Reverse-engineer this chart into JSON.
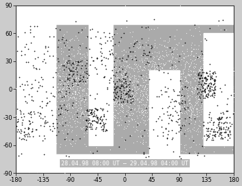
{
  "xlim": [
    -180,
    180
  ],
  "ylim": [
    -90,
    90
  ],
  "xticks": [
    -180,
    -135,
    -90,
    -45,
    0,
    45,
    90,
    135,
    180
  ],
  "yticks": [
    -90,
    -60,
    -30,
    0,
    30,
    60,
    90
  ],
  "annotation": "28.04.98 08:00 UT – 29.04.98 04:00 UT",
  "annotation_color": "white",
  "annotation_fontsize": 6.0,
  "land_color": "#aaaaaa",
  "ocean_color": "#ffffff",
  "border_color": "#222222",
  "dot_color_black": "black",
  "dot_color_white": "white",
  "dot_size_black": 1.5,
  "dot_size_white": 0.8,
  "figsize": [
    3.52,
    2.7
  ],
  "dpi": 100,
  "tick_fontsize": 6,
  "background_color": "#cccccc",
  "black_regions": [
    [
      120,
      150,
      -10,
      20,
      130
    ],
    [
      -65,
      -30,
      -45,
      -20,
      100
    ],
    [
      -20,
      15,
      -15,
      10,
      70
    ],
    [
      130,
      165,
      -55,
      -30,
      60
    ],
    [
      55,
      100,
      -35,
      5,
      50
    ],
    [
      -95,
      -60,
      8,
      32,
      60
    ],
    [
      -35,
      5,
      -5,
      22,
      35
    ],
    [
      -175,
      -85,
      -55,
      5,
      90
    ],
    [
      -175,
      -85,
      0,
      52,
      45
    ],
    [
      -65,
      -15,
      28,
      62,
      35
    ],
    [
      -5,
      45,
      28,
      52,
      25
    ],
    [
      155,
      180,
      -55,
      -22,
      35
    ],
    [
      -180,
      -155,
      -55,
      -22,
      35
    ],
    [
      140,
      175,
      -50,
      -42,
      25
    ],
    [
      60,
      100,
      -55,
      -38,
      20
    ]
  ],
  "scatter_black_count": 220,
  "white_count": 4000,
  "seed": 42
}
